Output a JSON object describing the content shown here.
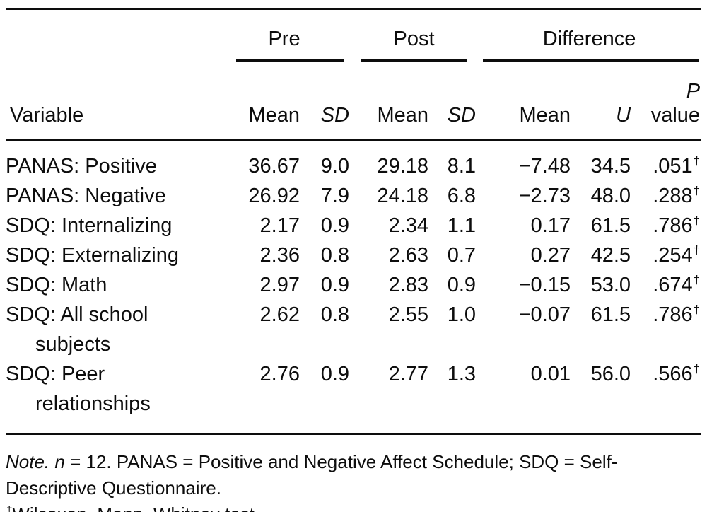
{
  "colors": {
    "background": "#ffffff",
    "text": "#0d0d0d",
    "rule": "#0d0d0d"
  },
  "table": {
    "spanners": [
      {
        "label": "Pre"
      },
      {
        "label": "Post"
      },
      {
        "label": "Difference"
      }
    ],
    "headers": {
      "variable": "Variable",
      "pre_mean": "Mean",
      "pre_sd": "SD",
      "post_mean": "Mean",
      "post_sd": "SD",
      "diff_mean": "Mean",
      "u": "U",
      "p": "P",
      "p_value_rest": "value"
    },
    "rows": [
      {
        "variable": "PANAS: Positive",
        "pre_mean": "36.67",
        "pre_sd": "9.0",
        "post_mean": "29.18",
        "post_sd": "8.1",
        "diff_mean": "−7.48",
        "u": "34.5",
        "p": ".051",
        "p_marker": "†"
      },
      {
        "variable": "PANAS: Negative",
        "pre_mean": "26.92",
        "pre_sd": "7.9",
        "post_mean": "24.18",
        "post_sd": "6.8",
        "diff_mean": "−2.73",
        "u": "48.0",
        "p": ".288",
        "p_marker": "†"
      },
      {
        "variable": "SDQ: Internalizing",
        "pre_mean": "2.17",
        "pre_sd": "0.9",
        "post_mean": "2.34",
        "post_sd": "1.1",
        "diff_mean": "0.17",
        "u": "61.5",
        "p": ".786",
        "p_marker": "†"
      },
      {
        "variable": "SDQ: Externalizing",
        "pre_mean": "2.36",
        "pre_sd": "0.8",
        "post_mean": "2.63",
        "post_sd": "0.7",
        "diff_mean": "0.27",
        "u": "42.5",
        "p": ".254",
        "p_marker": "†"
      },
      {
        "variable": "SDQ: Math",
        "pre_mean": "2.97",
        "pre_sd": "0.9",
        "post_mean": "2.83",
        "post_sd": "0.9",
        "diff_mean": "−0.15",
        "u": "53.0",
        "p": ".674",
        "p_marker": "†"
      },
      {
        "variable": "SDQ: All school subjects",
        "pre_mean": "2.62",
        "pre_sd": "0.8",
        "post_mean": "2.55",
        "post_sd": "1.0",
        "diff_mean": "−0.07",
        "u": "61.5",
        "p": ".786",
        "p_marker": "†"
      },
      {
        "variable": "SDQ: Peer relationships",
        "pre_mean": "2.76",
        "pre_sd": "0.9",
        "post_mean": "2.77",
        "post_sd": "1.3",
        "diff_mean": "0.01",
        "u": "56.0",
        "p": ".566",
        "p_marker": "†"
      }
    ]
  },
  "notes": {
    "note_label": "Note.",
    "n_label": "n",
    "line1_rest": " = 12. PANAS = Positive and Negative Affect Schedule; SDQ = Self-",
    "line2": "Descriptive Questionnaire.",
    "dagger": "†",
    "dagger_text": "Wilcoxon–Mann–Whitney test."
  }
}
